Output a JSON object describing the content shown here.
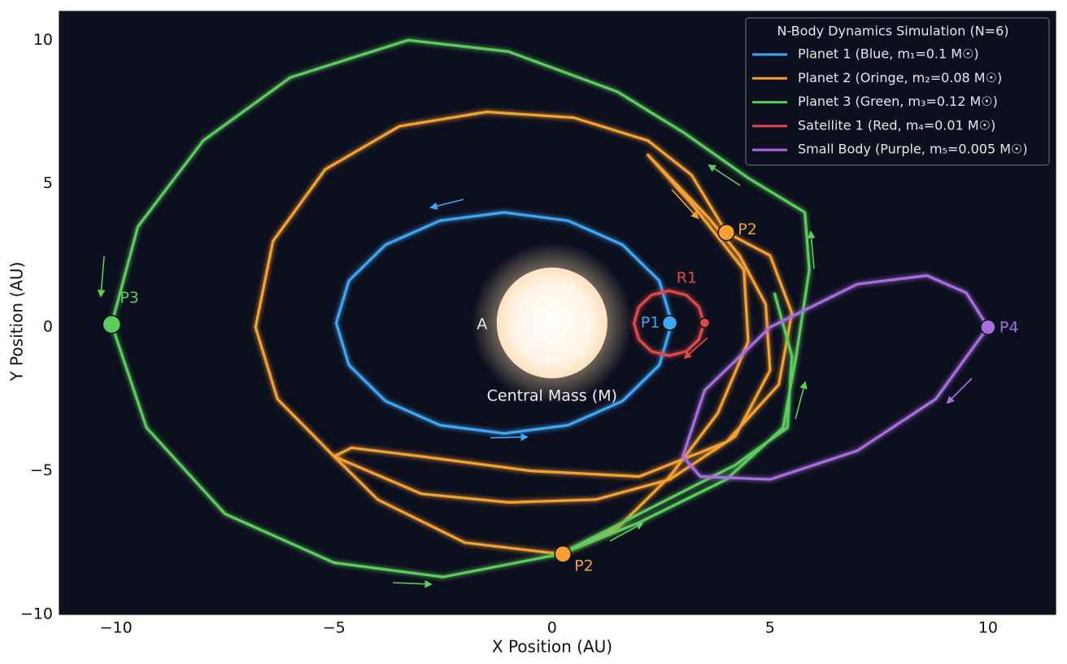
{
  "chart_data": {
    "type": "line",
    "legend_title": "N-Body Dynamics Simulation (N=6)",
    "legend": "upper right",
    "xlabel": "X Position (AU)",
    "ylabel": "Y Position (AU)",
    "xlim": [
      -11.3,
      11.55
    ],
    "ylim": [
      -10,
      11
    ],
    "xticks": [
      {
        "value": -10,
        "label": "−10"
      },
      {
        "value": -5,
        "label": "−5"
      },
      0,
      5,
      10
    ],
    "yticks": [
      {
        "value": -10,
        "label": "−10"
      },
      {
        "value": -5,
        "label": "−5"
      },
      0,
      5,
      10
    ],
    "grid": false,
    "background": "#0c0f1e",
    "series": [
      {
        "name": "Planet 1 (Blue, m₁=0.1 M☉)",
        "color": "#3ea6f5",
        "x": [
          2.75,
          2.46,
          1.62,
          0.37,
          -1.1,
          -2.57,
          -3.82,
          -4.66,
          -4.95,
          -4.66,
          -3.82,
          -2.57,
          -1.1,
          0.37,
          1.62,
          2.46,
          2.75
        ],
        "y": [
          0.15,
          1.62,
          2.87,
          3.71,
          4.0,
          3.71,
          2.87,
          1.62,
          0.15,
          -1.32,
          -2.57,
          -3.41,
          -3.7,
          -3.41,
          -2.57,
          -1.32,
          0.15
        ]
      },
      {
        "name": "Planet 2 (Oringe, m₂=0.08 M☉)",
        "color": "#f5a030",
        "x": [
          4.0,
          3.2,
          2.2,
          0.5,
          -1.5,
          -3.5,
          -5.2,
          -6.4,
          -6.8,
          -6.3,
          -5.0,
          -3.0,
          -1.0,
          1.0,
          2.7,
          4.2,
          5.0,
          4.9,
          4.3,
          3.6,
          2.2,
          3.2,
          4.4,
          4.5,
          3.8,
          2.7,
          1.5,
          0.2,
          -2.0,
          -4.0,
          -5.0,
          -4.6,
          -3.0,
          -0.5,
          2.0,
          4.0,
          5.2,
          5.5,
          5.0,
          4.0
        ],
        "y": [
          3.3,
          5.3,
          6.5,
          7.3,
          7.5,
          7.0,
          5.5,
          3.0,
          0.0,
          -2.5,
          -4.5,
          -5.8,
          -6.1,
          -6.0,
          -5.3,
          -3.8,
          -1.5,
          0.8,
          2.5,
          3.8,
          6.0,
          4.3,
          2.0,
          -0.5,
          -3.0,
          -5.2,
          -7.0,
          -7.9,
          -7.5,
          -6.0,
          -4.5,
          -4.2,
          -4.5,
          -5.0,
          -5.2,
          -4.0,
          -2.0,
          0.5,
          2.5,
          3.3
        ]
      },
      {
        "name": "Planet 3 (Green, m₃=0.12 M☉)",
        "color": "#5ccc5c",
        "x": [
          -10.1,
          -9.5,
          -8.0,
          -6.0,
          -3.3,
          -1.0,
          1.5,
          3.0,
          4.5,
          5.8,
          5.9,
          5.6,
          5.3,
          4.0,
          2.0,
          0.2,
          -2.5,
          -5.0,
          -7.5,
          -9.3,
          -10.1,
          null,
          5.1,
          5.5,
          5.4,
          4.2,
          2.0,
          0.2
        ],
        "y": [
          0.1,
          3.5,
          6.5,
          8.7,
          10.0,
          9.6,
          8.2,
          6.8,
          5.2,
          4.0,
          2.0,
          -1.0,
          -3.5,
          -5.3,
          -6.8,
          -7.9,
          -8.7,
          -8.2,
          -6.5,
          -3.5,
          0.1,
          null,
          1.2,
          -1.0,
          -3.5,
          -4.8,
          -6.5,
          -7.9
        ]
      },
      {
        "name": "Satellite 1 (Red, m₄=0.01 M☉)",
        "color": "#e04848",
        "x": [
          3.48,
          3.37,
          3.08,
          2.68,
          2.28,
          1.99,
          1.88,
          1.99,
          2.28,
          2.68,
          3.08,
          3.37,
          3.48
        ],
        "y": [
          0.14,
          0.7,
          1.12,
          1.27,
          1.12,
          0.7,
          0.14,
          -0.42,
          -0.84,
          -0.99,
          -0.84,
          -0.42,
          0.14
        ]
      },
      {
        "name": "Small Body (Purple, m₅=0.005 M☉)",
        "color": "#a86ee0",
        "x": [
          10.0,
          9.5,
          8.6,
          7.0,
          5.0,
          3.5,
          3.0,
          3.4,
          5.0,
          7.0,
          8.8,
          10.0
        ],
        "y": [
          0.0,
          1.2,
          1.8,
          1.5,
          0.0,
          -2.2,
          -4.5,
          -5.2,
          -5.3,
          -4.3,
          -2.5,
          0.0
        ]
      }
    ],
    "points": [
      {
        "label": "P1",
        "x": 2.7,
        "y": 0.15,
        "color": "#3ea6f5"
      },
      {
        "label": "R1",
        "x": 3.5,
        "y": 0.15,
        "color": "#e04848"
      },
      {
        "label": "P2",
        "x": 4.0,
        "y": 3.3,
        "color": "#f5a030"
      },
      {
        "label": "P2",
        "x": 0.25,
        "y": -7.9,
        "color": "#f5a030"
      },
      {
        "label": "P3",
        "x": -10.1,
        "y": 0.1,
        "color": "#5ccc5c"
      },
      {
        "label": "P4",
        "x": 10.0,
        "y": 0.0,
        "color": "#a86ee0"
      }
    ],
    "central_mass": {
      "label": "Central Mass (M)",
      "marker_label": "A",
      "x": 0,
      "y": 0.15,
      "radius": 1.27
    }
  }
}
